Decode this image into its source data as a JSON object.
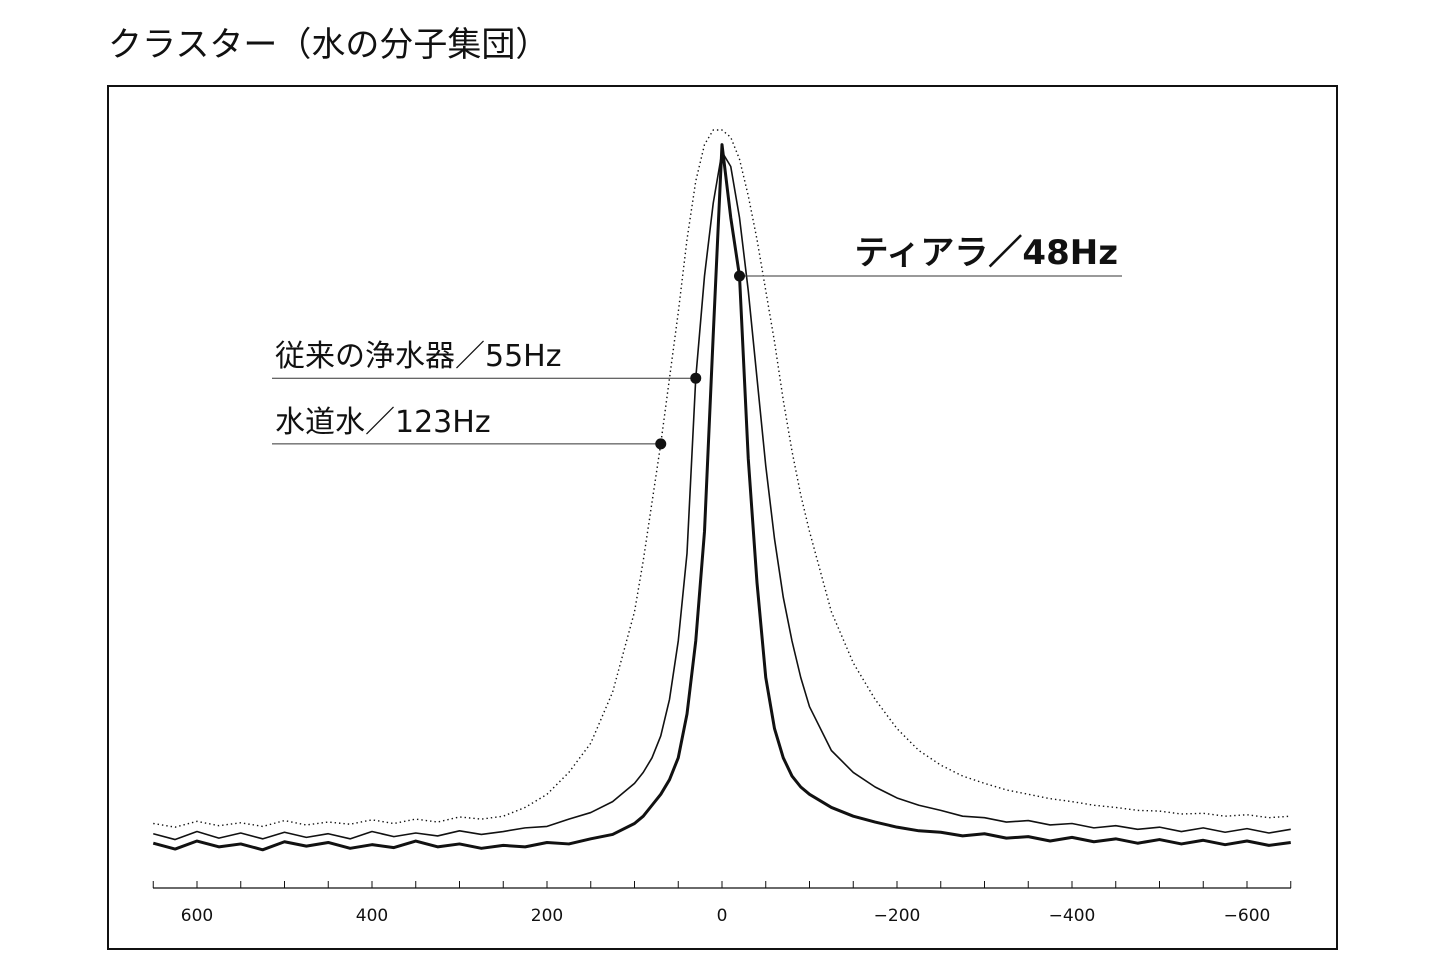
{
  "chart_data": {
    "type": "line",
    "title": "クラスター（水の分子集団）",
    "x": [
      650,
      625,
      600,
      575,
      550,
      525,
      500,
      475,
      450,
      425,
      400,
      375,
      350,
      325,
      300,
      275,
      250,
      225,
      200,
      175,
      150,
      125,
      100,
      90,
      80,
      70,
      60,
      50,
      40,
      30,
      20,
      10,
      0,
      -10,
      -20,
      -30,
      -40,
      -50,
      -60,
      -70,
      -80,
      -90,
      -100,
      -125,
      -150,
      -175,
      -200,
      -225,
      -250,
      -275,
      -300,
      -325,
      -350,
      -375,
      -400,
      -425,
      -450,
      -475,
      -500,
      -525,
      -550,
      -575,
      -600,
      -625,
      -650
    ],
    "series": [
      {
        "name": "ティアラ／48Hz",
        "color": "#111111",
        "linewidth": 3,
        "linestyle": "solid",
        "bold": true,
        "values": [
          2.3,
          1.5,
          2.6,
          1.8,
          2.2,
          1.4,
          2.5,
          1.9,
          2.4,
          1.6,
          2.1,
          1.7,
          2.6,
          1.8,
          2.2,
          1.6,
          2.0,
          1.8,
          2.4,
          2.2,
          2.9,
          3.5,
          5.0,
          6,
          7.5,
          9,
          11,
          14,
          20,
          30,
          45,
          72,
          98,
          88,
          80,
          55,
          38,
          25,
          18,
          14,
          11.5,
          10,
          9,
          7.2,
          6,
          5.2,
          4.5,
          4.0,
          3.8,
          3.3,
          3.6,
          3.0,
          3.2,
          2.6,
          3.1,
          2.5,
          2.9,
          2.3,
          2.8,
          2.2,
          2.7,
          2.1,
          2.6,
          2.0,
          2.4
        ]
      },
      {
        "name": "従来の浄水器／55Hz",
        "color": "#111111",
        "linewidth": 1.6,
        "linestyle": "solid",
        "bold": false,
        "values": [
          3.6,
          2.8,
          3.9,
          3.0,
          3.7,
          2.9,
          3.8,
          3.1,
          3.6,
          2.9,
          3.9,
          3.2,
          3.7,
          3.3,
          4.0,
          3.5,
          3.9,
          4.4,
          4.6,
          5.6,
          6.5,
          8,
          10.5,
          12,
          14,
          17,
          22,
          30,
          42,
          66,
          80,
          90,
          97,
          95,
          88,
          78,
          66,
          54,
          44,
          36,
          30,
          25,
          21,
          15,
          12,
          10,
          8.5,
          7.5,
          6.8,
          6.0,
          5.8,
          5.2,
          5.4,
          4.8,
          5.0,
          4.4,
          4.7,
          4.2,
          4.5,
          3.9,
          4.4,
          3.8,
          4.3,
          3.7,
          4.2
        ]
      },
      {
        "name": "水道水／123Hz",
        "color": "#111111",
        "linewidth": 1.4,
        "linestyle": "dotted",
        "bold": false,
        "values": [
          5.0,
          4.5,
          5.3,
          4.7,
          5.1,
          4.6,
          5.4,
          4.8,
          5.2,
          4.9,
          5.5,
          5.0,
          5.6,
          5.2,
          5.9,
          5.6,
          6.0,
          7.2,
          9,
          12,
          16,
          23,
          34,
          41,
          49,
          57,
          66,
          75,
          85,
          93,
          98,
          100,
          100,
          99,
          96,
          91,
          85,
          78,
          71,
          63,
          56,
          50,
          45,
          34,
          27,
          22,
          18,
          15,
          13,
          11.5,
          10.5,
          9.6,
          9.0,
          8.4,
          8.0,
          7.5,
          7.2,
          6.8,
          6.7,
          6.3,
          6.4,
          6.0,
          6.2,
          5.8,
          6.0
        ]
      }
    ],
    "xlim": [
      650,
      -650
    ],
    "ylim": [
      0,
      100
    ],
    "xticks": [
      600,
      400,
      200,
      0,
      {
        "value": -200,
        "label": "−200"
      },
      {
        "value": -400,
        "label": "−400"
      },
      {
        "value": -600,
        "label": "−600"
      }
    ],
    "xminorticks": [
      650,
      550,
      500,
      450,
      350,
      300,
      250,
      150,
      100,
      50,
      -50,
      -100,
      -150,
      -250,
      -300,
      -350,
      -450,
      -500,
      -550,
      -650
    ]
  }
}
